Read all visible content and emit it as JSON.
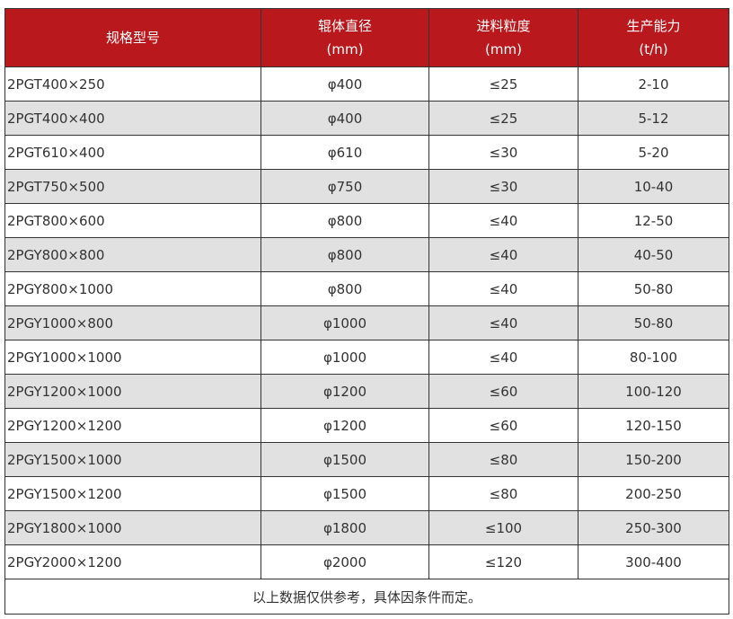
{
  "header": {
    "col1": "规格型号",
    "col2_line1": "辊体直径",
    "col2_line2": "(mm)",
    "col3_line1": "进料粒度",
    "col3_line2": "(mm)",
    "col4_line1": "生产能力",
    "col4_line2": "(t/h)"
  },
  "rows": [
    [
      "2PGT400×250",
      "φ400",
      "≤25",
      "2-10"
    ],
    [
      "2PGT400×400",
      "φ400",
      "≤25",
      "5-12"
    ],
    [
      "2PGT610×400",
      "φ610",
      "≤30",
      "5-20"
    ],
    [
      "2PGT750×500",
      "φ750",
      "≤30",
      "10-40"
    ],
    [
      "2PGT800×600",
      "φ800",
      "≤40",
      "12-50"
    ],
    [
      "2PGY800×800",
      "φ800",
      "≤40",
      "40-50"
    ],
    [
      "2PGY800×1000",
      "φ800",
      "≤40",
      "50-80"
    ],
    [
      "2PGY1000×800",
      "φ1000",
      "≤40",
      "50-80"
    ],
    [
      "2PGY1000×1000",
      "φ1000",
      "≤40",
      "80-100"
    ],
    [
      "2PGY1200×1000",
      "φ1200",
      "≤60",
      "100-120"
    ],
    [
      "2PGY1200×1200",
      "φ1200",
      "≤60",
      "120-150"
    ],
    [
      "2PGY1500×1000",
      "φ1500",
      "≤80",
      "150-200"
    ],
    [
      "2PGY1500×1200",
      "φ1500",
      "≤80",
      "200-250"
    ],
    [
      "2PGY1800×1000",
      "φ1800",
      "≤100",
      "250-300"
    ],
    [
      "2PGY2000×1200",
      "φ2000",
      "≤120",
      "300-400"
    ]
  ],
  "note": "以上数据仅供参考，具体因条件而定。",
  "colors": {
    "header_bg": "#b9181c",
    "alt_row_bg": "#e1e1e1"
  }
}
